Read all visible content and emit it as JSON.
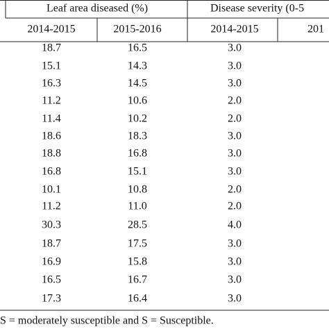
{
  "table": {
    "group_headers": [
      "Leaf area diseased (%)",
      "Disease severity (0-5"
    ],
    "column_headers": [
      "2014-2015",
      "2015-2016",
      "2014-2015",
      "201"
    ],
    "rows": [
      [
        "18.7",
        "16.5",
        "3.0"
      ],
      [
        "15.1",
        "14.3",
        "3.0"
      ],
      [
        "16.3",
        "14.5",
        "3.0"
      ],
      [
        "11.2",
        "10.6",
        "2.0"
      ],
      [
        "11.4",
        "10.2",
        "2.0"
      ],
      [
        "18.6",
        "18.3",
        "3.0"
      ],
      [
        "18.8",
        "16.8",
        "3.0"
      ],
      [
        "16.8",
        "15.1",
        "3.0"
      ],
      [
        "10.1",
        "10.8",
        "2.0"
      ],
      [
        "11.2",
        "11.0",
        "2.0"
      ],
      [
        "30.3",
        "28.5",
        "4.0"
      ],
      [
        "18.7",
        "17.5",
        "3.0"
      ],
      [
        "16.9",
        "15.8",
        "3.0"
      ],
      [
        "16.5",
        "16.7",
        "3.0"
      ],
      [
        "17.3",
        "16.4",
        "3.0"
      ]
    ],
    "footnote": "S = moderately susceptible and S = Susceptible."
  }
}
